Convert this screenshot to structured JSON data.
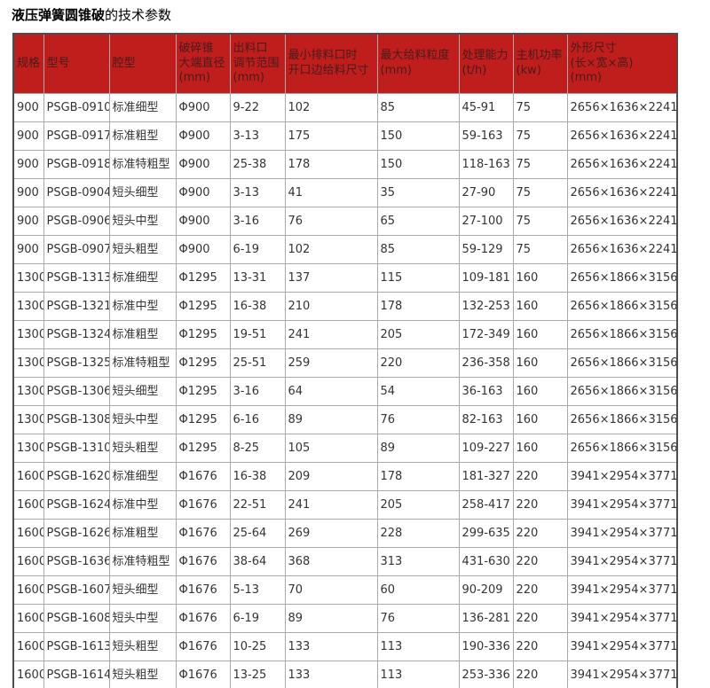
{
  "title": {
    "emphasis": "液压弹簧圆锥破",
    "suffix": "的技术参数"
  },
  "colors": {
    "header_bg": "#c01d1d",
    "header_text": "#461c1c",
    "body_text": "#333333",
    "grid_line": "#a9a9a9",
    "outer_border": "#4d4d4d",
    "title_color": "#000000"
  },
  "table": {
    "columns": [
      "规格",
      "型号",
      "腔型",
      "破碎锥\n大端直径\n(mm)",
      "出料口\n调节范围\n(mm)",
      "最小排料口时\n开口边给料尺寸",
      "最大给料粒度\n(mm)",
      "处理能力\n(t/h)",
      "主机功率\n(kw)",
      "外形尺寸\n(长×宽×高)\n(mm)"
    ],
    "rows": [
      [
        "900",
        "PSGB-0910",
        "标准细型",
        "Φ900",
        "9-22",
        "102",
        "85",
        "45-91",
        "75",
        "2656×1636×2241"
      ],
      [
        "900",
        "PSGB-0917",
        "标准粗型",
        "Φ900",
        "3-13",
        "175",
        "150",
        "59-163",
        "75",
        "2656×1636×2241"
      ],
      [
        "900",
        "PSGB-0918",
        "标准特粗型",
        "Φ900",
        "25-38",
        "178",
        "150",
        "118-163",
        "75",
        "2656×1636×2241"
      ],
      [
        "900",
        "PSGB-0904",
        "短头细型",
        "Φ900",
        "3-13",
        "41",
        "35",
        "27-90",
        "75",
        "2656×1636×2241"
      ],
      [
        "900",
        "PSGB-0906",
        "短头中型",
        "Φ900",
        "3-16",
        "76",
        "65",
        "27-100",
        "75",
        "2656×1636×2241"
      ],
      [
        "900",
        "PSGB-0907",
        "短头粗型",
        "Φ900",
        "6-19",
        "102",
        "85",
        "59-129",
        "75",
        "2656×1636×2241"
      ],
      [
        "1300",
        "PSGB-1313",
        "标准细型",
        "Φ1295",
        "13-31",
        "137",
        "115",
        "109-181",
        "160",
        "2656×1866×3156"
      ],
      [
        "1300",
        "PSGB-1321",
        "标准中型",
        "Φ1295",
        "16-38",
        "210",
        "178",
        "132-253",
        "160",
        "2656×1866×3156"
      ],
      [
        "1300",
        "PSGB-1324",
        "标准粗型",
        "Φ1295",
        "19-51",
        "241",
        "205",
        "172-349",
        "160",
        "2656×1866×3156"
      ],
      [
        "1300",
        "PSGB-1325",
        "标准特粗型",
        "Φ1295",
        "25-51",
        "259",
        "220",
        "236-358",
        "160",
        "2656×1866×3156"
      ],
      [
        "1300",
        "PSGB-1306",
        "短头细型",
        "Φ1295",
        "3-16",
        "64",
        "54",
        "36-163",
        "160",
        "2656×1866×3156"
      ],
      [
        "1300",
        "PSGB-1308",
        "短头中型",
        "Φ1295",
        "6-16",
        "89",
        "76",
        "82-163",
        "160",
        "2656×1866×3156"
      ],
      [
        "1300",
        "PSGB-1310",
        "短头粗型",
        "Φ1295",
        "8-25",
        "105",
        "89",
        "109-227",
        "160",
        "2656×1866×3156"
      ],
      [
        "1600",
        "PSGB-1620",
        "标准细型",
        "Φ1676",
        "16-38",
        "209",
        "178",
        "181-327",
        "220",
        "3941×2954×3771"
      ],
      [
        "1600",
        "PSGB-1624",
        "标准中型",
        "Φ1676",
        "22-51",
        "241",
        "205",
        "258-417",
        "220",
        "3941×2954×3771"
      ],
      [
        "1600",
        "PSGB-1626",
        "标准粗型",
        "Φ1676",
        "25-64",
        "269",
        "228",
        "299-635",
        "220",
        "3941×2954×3771"
      ],
      [
        "1600",
        "PSGB-1636",
        "标准特粗型",
        "Φ1676",
        "38-64",
        "368",
        "313",
        "431-630",
        "220",
        "3941×2954×3771"
      ],
      [
        "1600",
        "PSGB-1607",
        "短头细型",
        "Φ1676",
        "5-13",
        "70",
        "60",
        "90-209",
        "220",
        "3941×2954×3771"
      ],
      [
        "1600",
        "PSGB-1608",
        "短头中型",
        "Φ1676",
        "6-19",
        "89",
        "76",
        "136-281",
        "220",
        "3941×2954×3771"
      ],
      [
        "1600",
        "PSGB-1613",
        "短头粗型",
        "Φ1676",
        "10-25",
        "133",
        "113",
        "190-336",
        "220",
        "3941×2954×3771"
      ],
      [
        "1600",
        "PSGB-1614",
        "短头粗型",
        "Φ1676",
        "13-25",
        "133",
        "113",
        "253-336",
        "220",
        "3941×2954×3771"
      ]
    ]
  }
}
